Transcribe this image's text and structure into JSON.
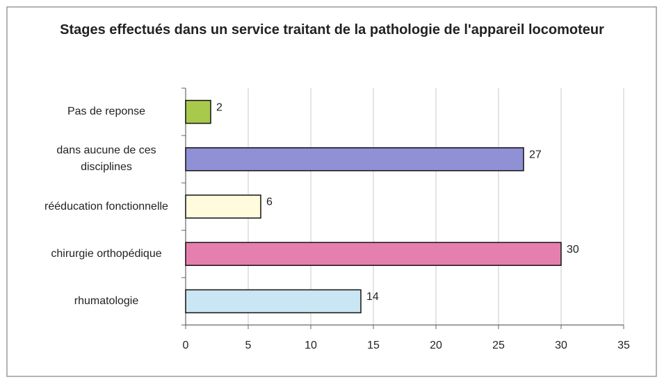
{
  "chart_data": {
    "type": "bar",
    "orientation": "horizontal",
    "title": "Stages effectués dans un service traitant de la pathologie de l'appareil locomoteur",
    "categories": [
      "Pas de reponse",
      "dans aucune de ces disciplines",
      "rééducation fonctionnelle",
      "chirurgie orthopédique",
      "rhumatologie"
    ],
    "values": [
      2,
      27,
      6,
      30,
      14
    ],
    "colors": [
      "#a9c94c",
      "#9090d6",
      "#fffbdc",
      "#e57fae",
      "#cbe6f3"
    ],
    "xlim": [
      0,
      35
    ],
    "xticks": [
      0,
      5,
      10,
      15,
      20,
      25,
      30,
      35
    ],
    "grid": true
  }
}
